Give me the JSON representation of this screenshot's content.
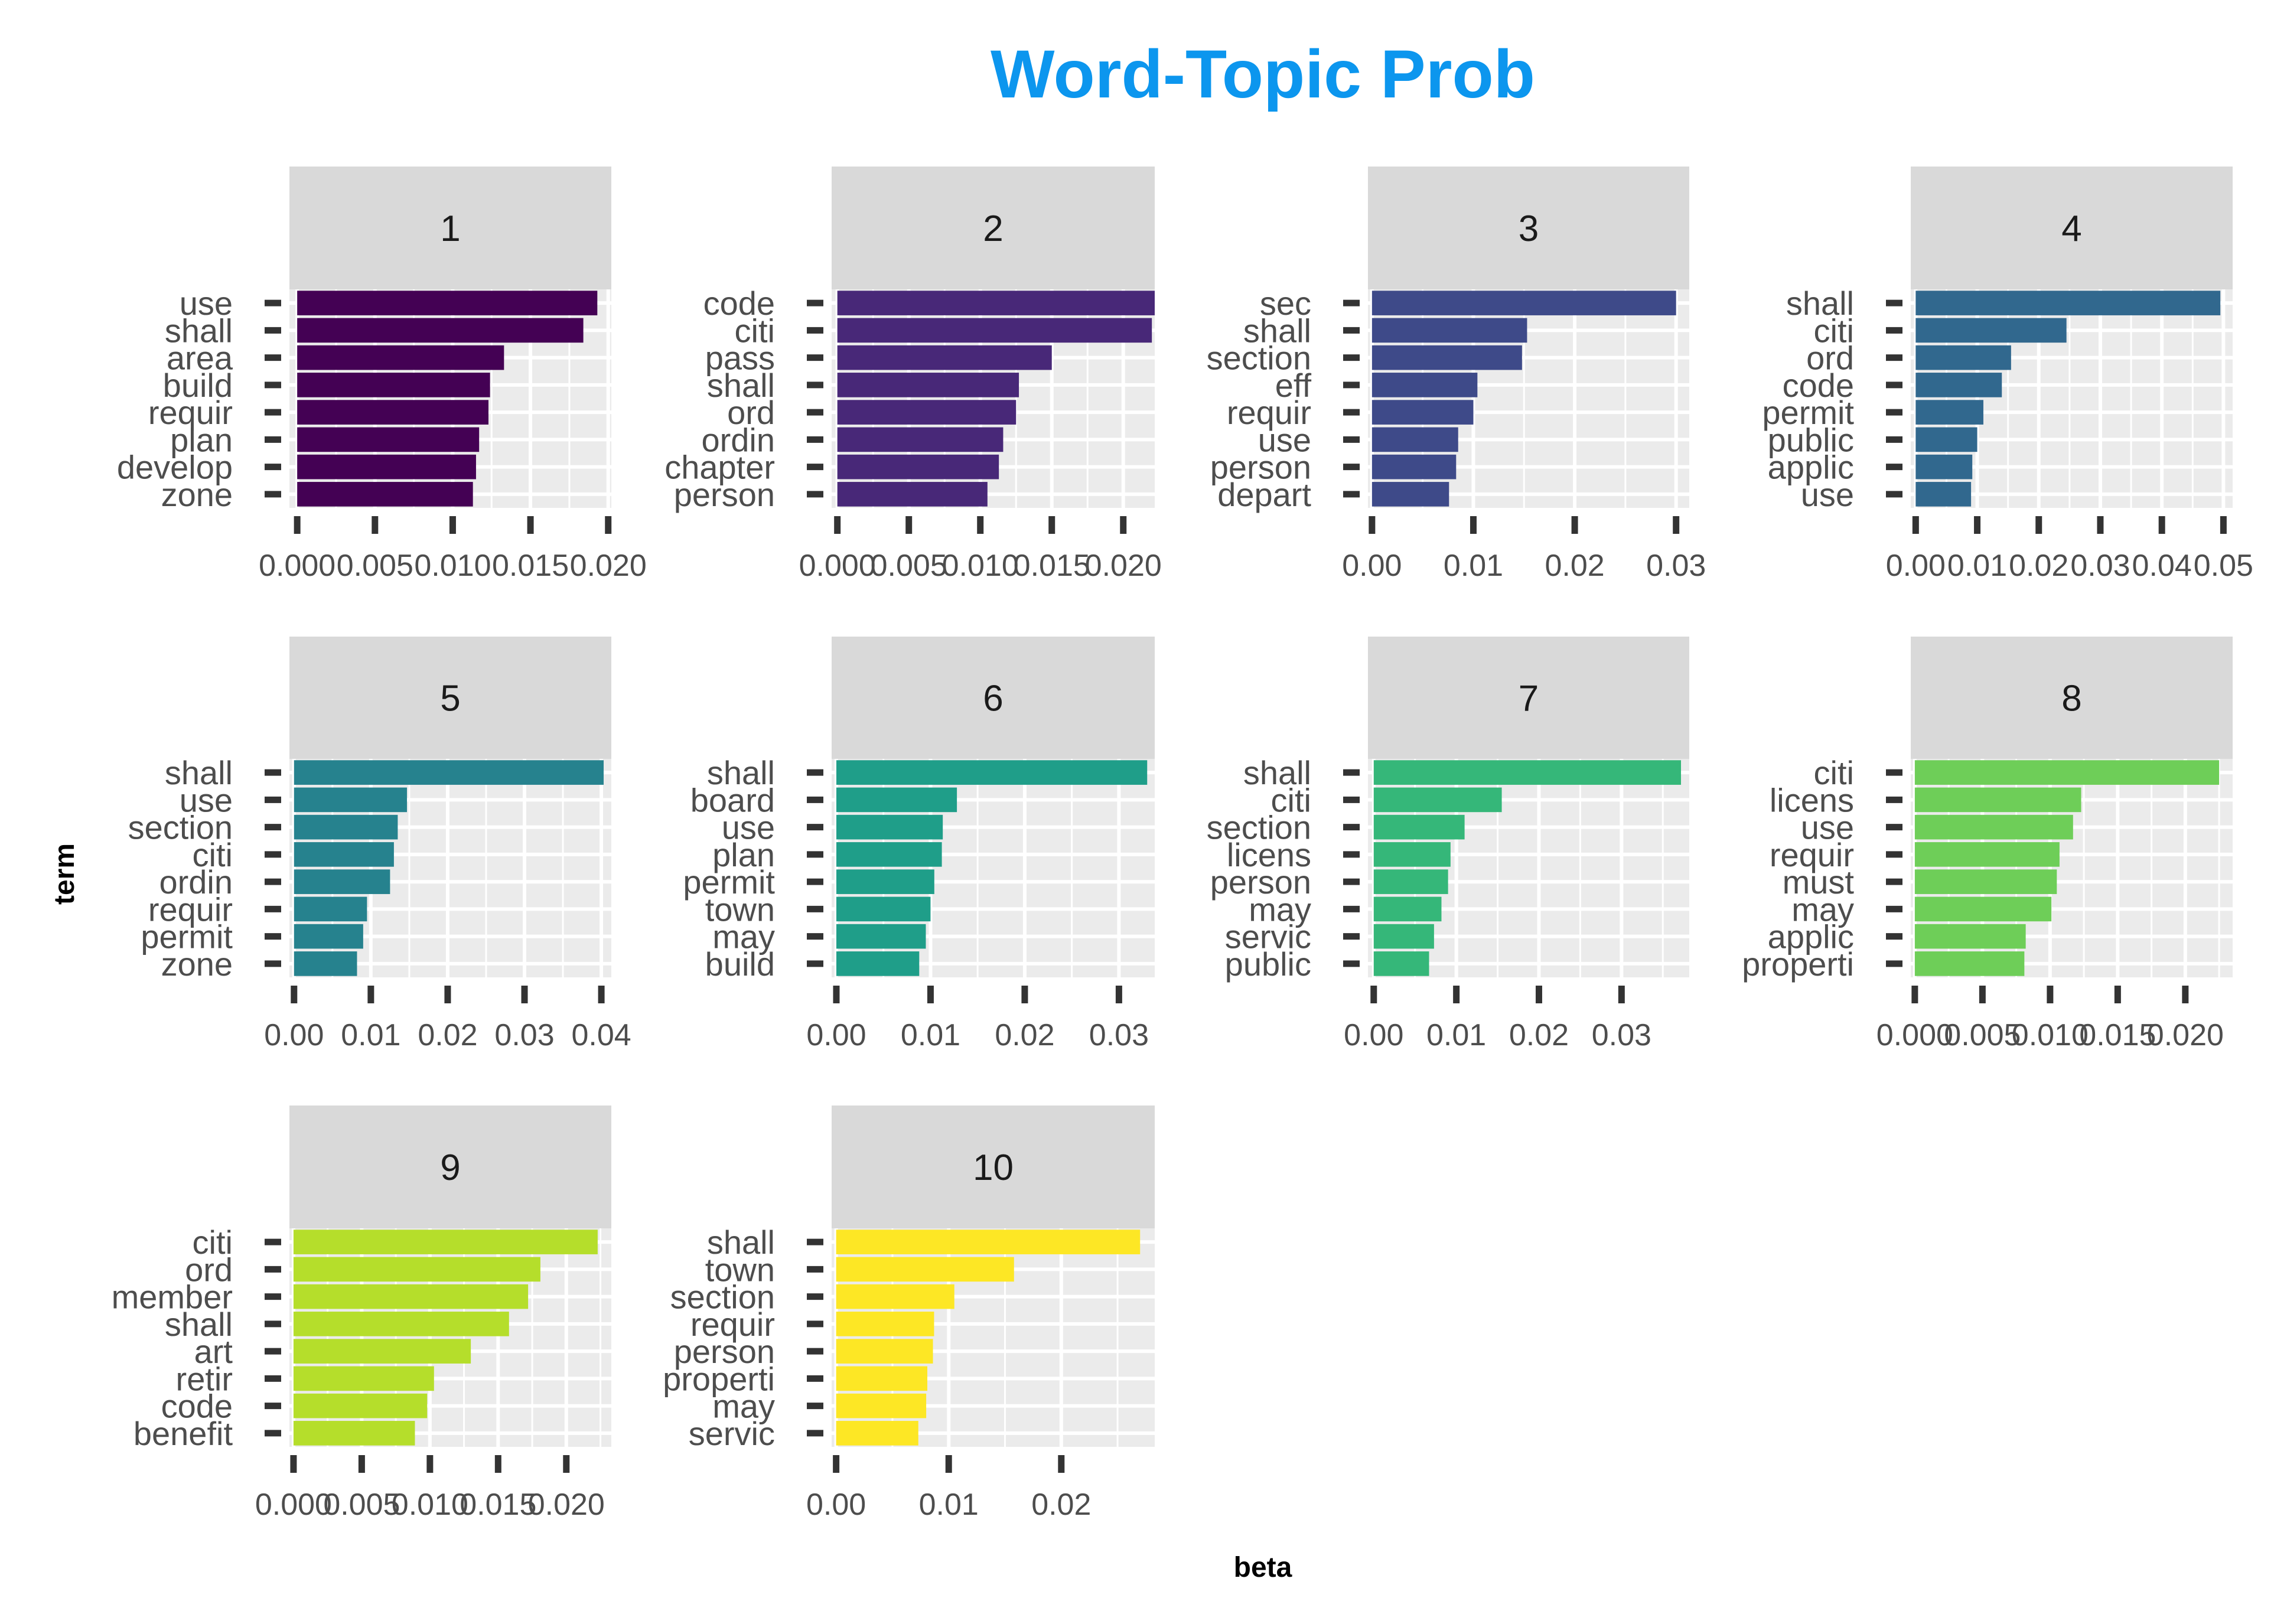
{
  "colors": {
    "title": "#0c96ee",
    "strip": "#d9d9d9",
    "panel": "#ebebeb",
    "grid": "#ffffff",
    "tick": "#333333",
    "text": "#4d4d4d"
  },
  "chart_data": {
    "type": "bar",
    "orientation": "horizontal",
    "title": "Word-Topic Prob",
    "xlabel": "beta",
    "ylabel": "term",
    "grid": true,
    "legend": "none",
    "facets": [
      {
        "topic": "1",
        "color": "#440154",
        "xlim": [
          -0.0005,
          0.0202
        ],
        "ticks": [
          0,
          0.005,
          0.01,
          0.015,
          0.02
        ],
        "tick_labels": [
          "0.000",
          "0.005",
          "0.010",
          "0.015",
          "0.020"
        ],
        "categories": [
          "use",
          "shall",
          "area",
          "build",
          "requir",
          "plan",
          "develop",
          "zone"
        ],
        "values": [
          0.0193,
          0.0184,
          0.0133,
          0.0124,
          0.0123,
          0.0117,
          0.0115,
          0.0113
        ]
      },
      {
        "topic": "2",
        "color": "#482878",
        "xlim": [
          -0.0004,
          0.0222
        ],
        "ticks": [
          0,
          0.005,
          0.01,
          0.015,
          0.02
        ],
        "tick_labels": [
          "0.000",
          "0.005",
          "0.010",
          "0.015",
          "0.020"
        ],
        "categories": [
          "code",
          "citi",
          "pass",
          "shall",
          "ord",
          "ordin",
          "chapter",
          "person"
        ],
        "values": [
          0.0222,
          0.022,
          0.015,
          0.0127,
          0.0125,
          0.0116,
          0.0113,
          0.0105
        ]
      },
      {
        "topic": "3",
        "color": "#3e4a89",
        "xlim": [
          -0.0004,
          0.0313
        ],
        "ticks": [
          0,
          0.01,
          0.02,
          0.03
        ],
        "tick_labels": [
          "0.00",
          "0.01",
          "0.02",
          "0.03"
        ],
        "categories": [
          "sec",
          "shall",
          "section",
          "eff",
          "requir",
          "use",
          "person",
          "depart"
        ],
        "values": [
          0.03,
          0.0153,
          0.0148,
          0.0104,
          0.01,
          0.0085,
          0.0083,
          0.0076
        ]
      },
      {
        "topic": "4",
        "color": "#31688e",
        "xlim": [
          -0.0008,
          0.0515
        ],
        "ticks": [
          0,
          0.01,
          0.02,
          0.03,
          0.04,
          0.05
        ],
        "tick_labels": [
          "0.00",
          "0.01",
          "0.02",
          "0.03",
          "0.04",
          "0.05"
        ],
        "categories": [
          "shall",
          "citi",
          "ord",
          "code",
          "permit",
          "public",
          "applic",
          "use"
        ],
        "values": [
          0.0495,
          0.0245,
          0.0155,
          0.014,
          0.011,
          0.01,
          0.0092,
          0.009
        ]
      },
      {
        "topic": "5",
        "color": "#26828e",
        "xlim": [
          -0.0006,
          0.0413
        ],
        "ticks": [
          0,
          0.01,
          0.02,
          0.03,
          0.04
        ],
        "tick_labels": [
          "0.00",
          "0.01",
          "0.02",
          "0.03",
          "0.04"
        ],
        "categories": [
          "shall",
          "use",
          "section",
          "citi",
          "ordin",
          "requir",
          "permit",
          "zone"
        ],
        "values": [
          0.0403,
          0.0147,
          0.0135,
          0.013,
          0.0125,
          0.0095,
          0.009,
          0.0082
        ]
      },
      {
        "topic": "6",
        "color": "#1f9e89",
        "xlim": [
          -0.0005,
          0.0338
        ],
        "ticks": [
          0,
          0.01,
          0.02,
          0.03
        ],
        "tick_labels": [
          "0.00",
          "0.01",
          "0.02",
          "0.03"
        ],
        "categories": [
          "shall",
          "board",
          "use",
          "plan",
          "permit",
          "town",
          "may",
          "build"
        ],
        "values": [
          0.033,
          0.0128,
          0.0113,
          0.0112,
          0.0104,
          0.01,
          0.0095,
          0.0088
        ]
      },
      {
        "topic": "7",
        "color": "#35b779",
        "xlim": [
          -0.0007,
          0.0382
        ],
        "ticks": [
          0,
          0.01,
          0.02,
          0.03
        ],
        "tick_labels": [
          "0.00",
          "0.01",
          "0.02",
          "0.03"
        ],
        "categories": [
          "shall",
          "citi",
          "section",
          "licens",
          "person",
          "may",
          "servic",
          "public"
        ],
        "values": [
          0.0372,
          0.0155,
          0.011,
          0.0093,
          0.009,
          0.0082,
          0.0073,
          0.0067
        ]
      },
      {
        "topic": "8",
        "color": "#6ece58",
        "xlim": [
          -0.0003,
          0.0235
        ],
        "ticks": [
          0,
          0.005,
          0.01,
          0.015,
          0.02
        ],
        "tick_labels": [
          "0.000",
          "0.005",
          "0.010",
          "0.015",
          "0.020"
        ],
        "categories": [
          "citi",
          "licens",
          "use",
          "requir",
          "must",
          "may",
          "applic",
          "properti"
        ],
        "values": [
          0.0225,
          0.0123,
          0.0117,
          0.0107,
          0.0105,
          0.0101,
          0.0082,
          0.0081
        ]
      },
      {
        "topic": "9",
        "color": "#b5de2b",
        "xlim": [
          -0.0003,
          0.0233
        ],
        "ticks": [
          0,
          0.005,
          0.01,
          0.015,
          0.02
        ],
        "tick_labels": [
          "0.000",
          "0.005",
          "0.010",
          "0.015",
          "0.020"
        ],
        "categories": [
          "citi",
          "ord",
          "member",
          "shall",
          "art",
          "retir",
          "code",
          "benefit"
        ],
        "values": [
          0.0223,
          0.0181,
          0.0172,
          0.0158,
          0.013,
          0.0103,
          0.0098,
          0.0089
        ]
      },
      {
        "topic": "10",
        "color": "#fde725",
        "xlim": [
          -0.0004,
          0.0283
        ],
        "ticks": [
          0,
          0.01,
          0.02
        ],
        "tick_labels": [
          "0.00",
          "0.01",
          "0.02"
        ],
        "categories": [
          "shall",
          "town",
          "section",
          "requir",
          "person",
          "properti",
          "may",
          "servic"
        ],
        "values": [
          0.027,
          0.0158,
          0.0105,
          0.0087,
          0.0086,
          0.0081,
          0.008,
          0.0073
        ]
      }
    ]
  }
}
